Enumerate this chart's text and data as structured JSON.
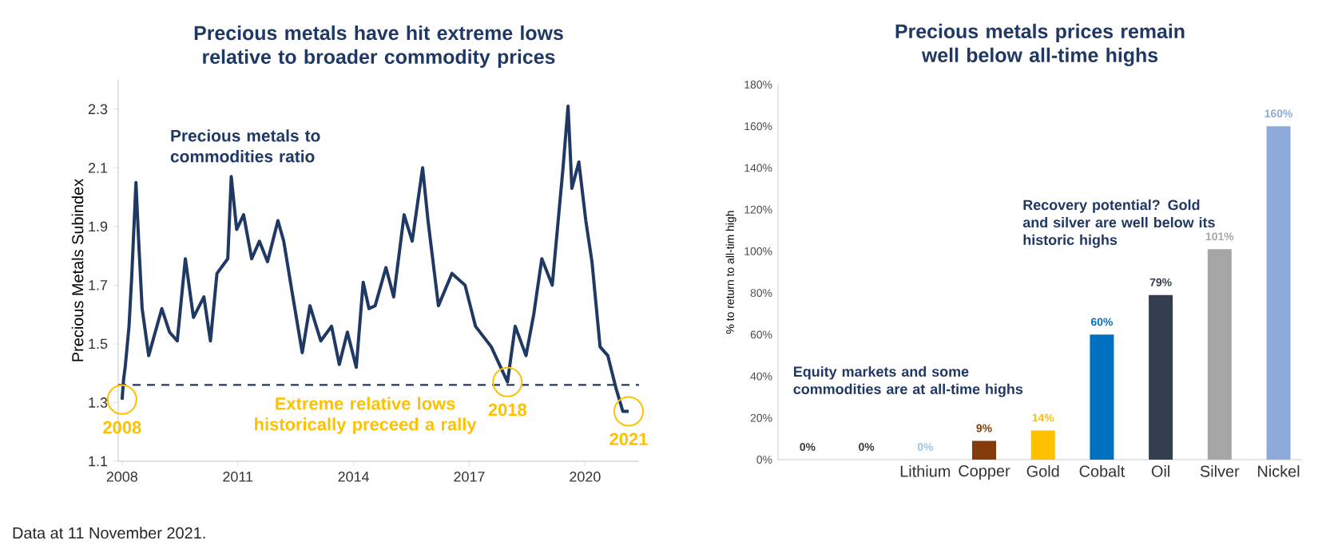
{
  "chart_data": [
    {
      "type": "line",
      "title": "Precious metals have hit extreme lows relative to broader commodity prices",
      "ylabel": "Precious Metals Subindex",
      "x": [
        2008.0,
        2008.04,
        2008.08,
        2008.18,
        2008.25,
        2008.36,
        2008.43,
        2008.52,
        2008.69,
        2009.03,
        2009.23,
        2009.43,
        2009.64,
        2009.85,
        2010.12,
        2010.29,
        2010.46,
        2010.74,
        2010.83,
        2010.97,
        2011.15,
        2011.36,
        2011.56,
        2011.77,
        2012.04,
        2012.19,
        2012.39,
        2012.67,
        2012.87,
        2013.15,
        2013.43,
        2013.63,
        2013.84,
        2014.07,
        2014.25,
        2014.4,
        2014.56,
        2014.84,
        2015.04,
        2015.31,
        2015.52,
        2015.79,
        2015.93,
        2016.2,
        2016.55,
        2016.89,
        2017.16,
        2017.57,
        2017.99,
        2018.19,
        2018.47,
        2018.67,
        2018.88,
        2019.15,
        2019.43,
        2019.56,
        2019.66,
        2019.84,
        2020.02,
        2020.18,
        2020.39,
        2020.59,
        2020.8,
        2020.98,
        2021.13
      ],
      "series": [
        {
          "color": "#1f3864",
          "line_style": "solid",
          "values": [
            1.31,
            1.38,
            1.42,
            1.56,
            1.73,
            2.05,
            1.85,
            1.62,
            1.46,
            1.62,
            1.54,
            1.51,
            1.79,
            1.59,
            1.66,
            1.51,
            1.74,
            1.79,
            2.07,
            1.89,
            1.94,
            1.79,
            1.85,
            1.78,
            1.92,
            1.85,
            1.69,
            1.47,
            1.63,
            1.51,
            1.56,
            1.43,
            1.54,
            1.42,
            1.71,
            1.62,
            1.63,
            1.76,
            1.66,
            1.94,
            1.85,
            2.1,
            1.92,
            1.63,
            1.74,
            1.7,
            1.56,
            1.49,
            1.37,
            1.56,
            1.46,
            1.6,
            1.79,
            1.7,
            2.1,
            2.31,
            2.03,
            2.12,
            1.92,
            1.78,
            1.49,
            1.46,
            1.35,
            1.27,
            1.27
          ]
        }
      ],
      "xlim": [
        2007.9,
        2021.4
      ],
      "ylim": [
        1.1,
        2.4
      ],
      "xticks": [
        2008,
        2011,
        2014,
        2017,
        2020
      ],
      "yticks": [
        1.1,
        1.3,
        1.5,
        1.7,
        1.9,
        2.1,
        2.3
      ],
      "ref_lines": [
        {
          "axis": "y",
          "value": 1.36,
          "label": "Extreme relative lows historically preceed a rally",
          "color": "#1f3864",
          "line_style": "dashed"
        }
      ],
      "annotations": [
        "Precious metals to commodities ratio",
        {
          "text": "2008",
          "x": 2008.0,
          "y": 1.31
        },
        {
          "text": "2018",
          "x": 2017.99,
          "y": 1.37
        },
        {
          "text": "2021",
          "x": 2021.13,
          "y": 1.27
        },
        "Data at 11 November 2021."
      ]
    },
    {
      "type": "bar",
      "title": "Precious metals prices remain well below all-time highs",
      "ylabel": "% to return to all-tim high",
      "categories": [
        null,
        null,
        "Lithium",
        "Copper",
        "Gold",
        "Cobalt",
        "Oil",
        "Silver",
        "Nickel"
      ],
      "values": [
        0,
        0,
        0,
        9,
        14,
        60,
        79,
        101,
        160
      ],
      "colors": [
        "#3b3838",
        "#3b3838",
        "#9dc3e6",
        "#843c0c",
        "#ffc000",
        "#0070c0",
        "#323e4f",
        "#a5a5a5",
        "#8eaadb"
      ],
      "value_labels": [
        "0%",
        "0%",
        "0%",
        "9%",
        "14%",
        "60%",
        "79%",
        "101%",
        "160%"
      ],
      "ylim": [
        0,
        180
      ],
      "yticks": [
        {
          "value": 0,
          "label": "0%"
        },
        {
          "value": 20,
          "label": "20%"
        },
        {
          "value": 40,
          "label": "40%"
        },
        {
          "value": 60,
          "label": "60%"
        },
        {
          "value": 80,
          "label": "80%"
        },
        {
          "value": 100,
          "label": "100%"
        },
        {
          "value": 120,
          "label": "120%"
        },
        {
          "value": 140,
          "label": "140%"
        },
        {
          "value": 160,
          "label": "160%"
        },
        {
          "value": 180,
          "label": "180%"
        }
      ],
      "annotations": [
        "Equity markets and some commodities are at  all-time highs",
        "Recovery potential? Gold and silver are well below its historic highs"
      ]
    }
  ]
}
